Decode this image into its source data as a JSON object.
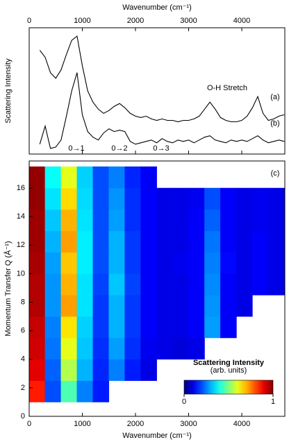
{
  "chart_data": [
    {
      "type": "line",
      "xlabel": "Wavenumber (cm⁻¹)",
      "ylabel": "Scattering Intensity",
      "xlim": [
        0,
        4810
      ],
      "xticks": [
        0,
        1000,
        2000,
        3000,
        4000
      ],
      "ylim": [
        0,
        0.9
      ],
      "x": [
        200,
        300,
        400,
        500,
        600,
        700,
        800,
        900,
        1000,
        1100,
        1200,
        1300,
        1400,
        1500,
        1600,
        1700,
        1800,
        1900,
        2000,
        2100,
        2200,
        2300,
        2400,
        2500,
        2600,
        2700,
        2800,
        2900,
        3000,
        3100,
        3200,
        3300,
        3400,
        3500,
        3600,
        3700,
        3800,
        3900,
        4000,
        4100,
        4200,
        4300,
        4400,
        4500,
        4600,
        4700,
        4800
      ],
      "series": [
        {
          "name": "(a)",
          "color": "#000000",
          "values": [
            0.74,
            0.69,
            0.58,
            0.54,
            0.6,
            0.71,
            0.81,
            0.84,
            0.63,
            0.45,
            0.37,
            0.32,
            0.29,
            0.31,
            0.34,
            0.36,
            0.33,
            0.29,
            0.27,
            0.26,
            0.27,
            0.25,
            0.24,
            0.25,
            0.24,
            0.24,
            0.23,
            0.24,
            0.24,
            0.25,
            0.27,
            0.32,
            0.37,
            0.32,
            0.26,
            0.24,
            0.23,
            0.23,
            0.24,
            0.27,
            0.33,
            0.41,
            0.29,
            0.24,
            0.25,
            0.27,
            0.28
          ]
        },
        {
          "name": "(b)",
          "color": "#000000",
          "values": [
            0.07,
            0.2,
            0.04,
            0.05,
            0.1,
            0.27,
            0.45,
            0.58,
            0.28,
            0.16,
            0.12,
            0.1,
            0.15,
            0.18,
            0.16,
            0.17,
            0.16,
            0.09,
            0.07,
            0.08,
            0.09,
            0.1,
            0.08,
            0.11,
            0.09,
            0.08,
            0.1,
            0.09,
            0.1,
            0.08,
            0.1,
            0.12,
            0.13,
            0.1,
            0.09,
            0.08,
            0.1,
            0.09,
            0.1,
            0.09,
            0.11,
            0.13,
            0.1,
            0.08,
            0.09,
            0.1,
            0.09
          ]
        }
      ],
      "annotations": [
        "O-H Stretch",
        "0→1",
        "0→2",
        "0→3"
      ]
    },
    {
      "type": "heatmap",
      "xlabel": "Wavenumber (cm⁻¹)",
      "ylabel": "Momentum Transfer Q (Å⁻¹)",
      "annotation": "(c)",
      "xlim": [
        0,
        4810
      ],
      "xticks": [
        0,
        1000,
        2000,
        3000,
        4000
      ],
      "ylim": [
        0,
        17.9
      ],
      "yticks": [
        0,
        2,
        4,
        6,
        8,
        10,
        12,
        14,
        16
      ],
      "x_edges": [
        0,
        300,
        600,
        900,
        1200,
        1500,
        1800,
        2100,
        2400,
        2700,
        3000,
        3300,
        3600,
        3900,
        4200,
        4500,
        4800
      ],
      "y_edges": [
        1,
        2.5,
        4,
        5.5,
        7,
        8.5,
        10,
        11.5,
        13,
        14.5,
        16,
        17.5
      ],
      "z": [
        [
          0.85,
          0.2,
          0.45,
          0.25,
          0.15,
          null,
          null,
          null,
          null,
          null,
          null,
          null,
          null,
          null,
          null,
          null
        ],
        [
          0.9,
          0.22,
          0.55,
          0.3,
          0.16,
          0.25,
          0.15,
          0.1,
          null,
          null,
          null,
          null,
          null,
          null,
          null,
          null
        ],
        [
          0.92,
          0.24,
          0.6,
          0.32,
          0.17,
          0.28,
          0.17,
          0.11,
          0.1,
          0.09,
          0.1,
          null,
          null,
          null,
          null,
          null
        ],
        [
          0.93,
          0.25,
          0.65,
          0.33,
          0.18,
          0.3,
          0.18,
          0.12,
          0.1,
          0.1,
          0.12,
          0.28,
          0.12,
          null,
          null,
          null
        ],
        [
          0.95,
          0.27,
          0.72,
          0.35,
          0.18,
          0.3,
          0.18,
          0.12,
          0.1,
          0.1,
          0.12,
          0.27,
          0.12,
          0.1,
          null,
          null
        ],
        [
          0.95,
          0.27,
          0.7,
          0.35,
          0.19,
          0.32,
          0.19,
          0.12,
          0.1,
          0.1,
          0.12,
          0.26,
          0.12,
          0.1,
          0.12,
          0.1
        ],
        [
          0.96,
          0.28,
          0.68,
          0.36,
          0.2,
          0.3,
          0.18,
          0.12,
          0.1,
          0.11,
          0.12,
          0.25,
          0.13,
          0.1,
          0.12,
          0.1
        ],
        [
          0.97,
          0.3,
          0.72,
          0.36,
          0.2,
          0.3,
          0.18,
          0.12,
          0.1,
          0.1,
          0.12,
          0.24,
          0.12,
          0.1,
          0.12,
          0.1
        ],
        [
          0.97,
          0.32,
          0.7,
          0.35,
          0.2,
          0.28,
          0.17,
          0.12,
          0.1,
          0.1,
          0.12,
          0.22,
          0.12,
          0.1,
          0.11,
          0.1
        ],
        [
          0.98,
          0.35,
          0.66,
          0.34,
          0.2,
          0.27,
          0.17,
          0.12,
          0.1,
          0.1,
          0.11,
          0.2,
          0.12,
          0.1,
          0.11,
          0.1
        ],
        [
          0.98,
          0.38,
          0.6,
          0.33,
          0.2,
          0.25,
          0.16,
          0.12,
          null,
          null,
          null,
          null,
          null,
          null,
          null,
          null
        ]
      ],
      "colorbar": {
        "label": [
          "Scattering Intensity",
          "(arb. units)"
        ],
        "clim": [
          0,
          1
        ],
        "ticks": [
          0,
          1
        ]
      }
    }
  ]
}
